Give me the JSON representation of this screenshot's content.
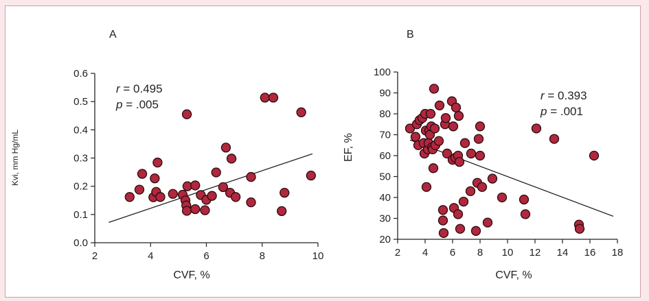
{
  "chart_data": [
    {
      "type": "scatter",
      "panel_label": "A",
      "xlabel": "CVF, %",
      "ylabel": "Kvi, mm Hg/mL",
      "xlim": [
        2,
        10
      ],
      "ylim": [
        0,
        0.6
      ],
      "xticks": [
        "2",
        "4",
        "6",
        "8",
        "10"
      ],
      "yticks": [
        "0.0",
        "0.1",
        "0.2",
        "0.3",
        "0.4",
        "0.5",
        "0.6"
      ],
      "annotation": {
        "r_sym": "r",
        "r_text": " = 0.495",
        "p_sym": "p",
        "p_text": " = .005"
      },
      "trendline": [
        [
          2.5,
          0.072
        ],
        [
          9.8,
          0.315
        ]
      ],
      "points": [
        [
          3.25,
          0.162
        ],
        [
          3.6,
          0.188
        ],
        [
          3.7,
          0.244
        ],
        [
          4.1,
          0.161
        ],
        [
          4.15,
          0.228
        ],
        [
          4.2,
          0.18
        ],
        [
          4.25,
          0.284
        ],
        [
          4.35,
          0.162
        ],
        [
          4.8,
          0.173
        ],
        [
          5.15,
          0.17
        ],
        [
          5.25,
          0.15
        ],
        [
          5.28,
          0.132
        ],
        [
          5.3,
          0.455
        ],
        [
          5.3,
          0.113
        ],
        [
          5.32,
          0.2
        ],
        [
          5.6,
          0.203
        ],
        [
          5.6,
          0.119
        ],
        [
          5.8,
          0.169
        ],
        [
          5.95,
          0.115
        ],
        [
          6.0,
          0.152
        ],
        [
          6.2,
          0.166
        ],
        [
          6.35,
          0.249
        ],
        [
          6.6,
          0.197
        ],
        [
          6.7,
          0.337
        ],
        [
          6.85,
          0.177
        ],
        [
          6.9,
          0.298
        ],
        [
          7.05,
          0.162
        ],
        [
          7.6,
          0.233
        ],
        [
          7.6,
          0.143
        ],
        [
          8.1,
          0.514
        ],
        [
          8.4,
          0.514
        ],
        [
          8.7,
          0.112
        ],
        [
          8.8,
          0.177
        ],
        [
          9.4,
          0.462
        ],
        [
          9.75,
          0.238
        ]
      ]
    },
    {
      "type": "scatter",
      "panel_label": "B",
      "xlabel": "CVF, %",
      "ylabel": "EF, %",
      "xlim": [
        2,
        18
      ],
      "ylim": [
        20,
        100
      ],
      "xticks": [
        "2",
        "4",
        "6",
        "8",
        "10",
        "12",
        "14",
        "16",
        "18"
      ],
      "yticks": [
        "20",
        "30",
        "40",
        "50",
        "60",
        "70",
        "80",
        "90",
        "100"
      ],
      "annotation": {
        "r_sym": "r",
        "r_text": " = 0.393",
        "p_sym": "p",
        "p_text": " = .001"
      },
      "trendline": [
        [
          2.9,
          67.5
        ],
        [
          17.7,
          31.0
        ]
      ],
      "points": [
        [
          2.9,
          73
        ],
        [
          3.3,
          69
        ],
        [
          3.4,
          75
        ],
        [
          3.5,
          65
        ],
        [
          3.6,
          77
        ],
        [
          3.8,
          78
        ],
        [
          3.9,
          66
        ],
        [
          3.95,
          61
        ],
        [
          4.0,
          80
        ],
        [
          4.05,
          72
        ],
        [
          4.1,
          45
        ],
        [
          4.2,
          63
        ],
        [
          4.25,
          66
        ],
        [
          4.3,
          72
        ],
        [
          4.35,
          70
        ],
        [
          4.4,
          80
        ],
        [
          4.45,
          74
        ],
        [
          4.5,
          64
        ],
        [
          4.55,
          63
        ],
        [
          4.6,
          54
        ],
        [
          4.65,
          92
        ],
        [
          4.7,
          73
        ],
        [
          4.75,
          65
        ],
        [
          5.0,
          67
        ],
        [
          5.05,
          84
        ],
        [
          5.3,
          34
        ],
        [
          5.3,
          29
        ],
        [
          5.35,
          23
        ],
        [
          5.45,
          75
        ],
        [
          5.5,
          78
        ],
        [
          5.6,
          61
        ],
        [
          5.95,
          86
        ],
        [
          6.0,
          58
        ],
        [
          6.05,
          74
        ],
        [
          6.1,
          35
        ],
        [
          6.2,
          59
        ],
        [
          6.25,
          83
        ],
        [
          6.4,
          60
        ],
        [
          6.4,
          32
        ],
        [
          6.45,
          79
        ],
        [
          6.5,
          57
        ],
        [
          6.55,
          25
        ],
        [
          6.8,
          38
        ],
        [
          6.9,
          66
        ],
        [
          7.3,
          43
        ],
        [
          7.35,
          61
        ],
        [
          7.7,
          24
        ],
        [
          7.8,
          47
        ],
        [
          7.9,
          68
        ],
        [
          8.0,
          60
        ],
        [
          8.0,
          74
        ],
        [
          8.15,
          45
        ],
        [
          8.55,
          28
        ],
        [
          8.9,
          49
        ],
        [
          9.6,
          40
        ],
        [
          11.2,
          39
        ],
        [
          11.3,
          32
        ],
        [
          12.1,
          73
        ],
        [
          13.4,
          68
        ],
        [
          15.2,
          27
        ],
        [
          15.25,
          25
        ],
        [
          16.3,
          60
        ]
      ]
    }
  ],
  "colors": {
    "marker_fill": "#b0283e",
    "marker_stroke": "#2a0a0e",
    "axis": "#222222",
    "frame": "#c9a0a6",
    "page_bg": "#fbe8ea"
  }
}
